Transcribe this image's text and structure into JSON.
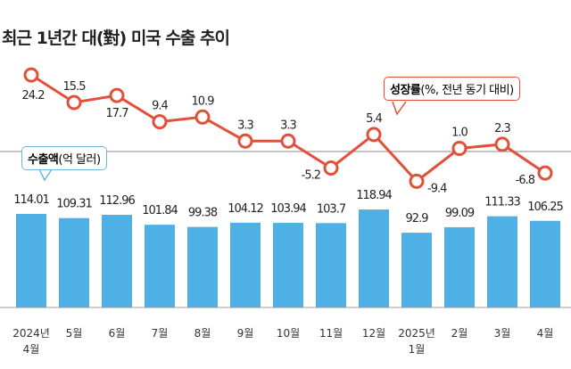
{
  "title": "최근 1년간 대(對) 미국 수출 추이",
  "chart_data": {
    "type": "bar+line",
    "categories": [
      "2024년 4월",
      "5월",
      "6월",
      "7월",
      "8월",
      "9월",
      "10월",
      "11월",
      "12월",
      "2025년 1월",
      "2월",
      "3월",
      "4월"
    ],
    "category_lines": [
      [
        "2024년",
        "4월"
      ],
      [
        "5월"
      ],
      [
        "6월"
      ],
      [
        "7월"
      ],
      [
        "8월"
      ],
      [
        "9월"
      ],
      [
        "10월"
      ],
      [
        "11월"
      ],
      [
        "12월"
      ],
      [
        "2025년",
        "1월"
      ],
      [
        "2월"
      ],
      [
        "3월"
      ],
      [
        "4월"
      ]
    ],
    "series": [
      {
        "name": "수출액(억 달러)",
        "type": "bar",
        "color": "#4fb0e6",
        "values": [
          114.01,
          109.31,
          112.96,
          101.84,
          99.38,
          104.12,
          103.94,
          103.7,
          118.94,
          92.9,
          99.09,
          111.33,
          106.25
        ],
        "labels": [
          "114.01",
          "109.31",
          "112.96",
          "101.84",
          "99.38",
          "104.12",
          "103.94",
          "103.7",
          "118.94",
          "92.9",
          "99.09",
          "111.33",
          "106.25"
        ]
      },
      {
        "name": "성장률(%, 전년 동기 대비)",
        "type": "line",
        "color": "#e2503a",
        "values": [
          24.2,
          15.5,
          17.7,
          9.4,
          10.9,
          3.3,
          3.3,
          -5.2,
          5.4,
          -9.4,
          1.0,
          2.3,
          -6.8
        ],
        "labels": [
          "24.2",
          "15.5",
          "17.7",
          "9.4",
          "10.9",
          "3.3",
          "3.3",
          "-5.2",
          "5.4",
          "-9.4",
          "1.0",
          "2.3",
          "-6.8"
        ]
      }
    ],
    "legend": {
      "bar_bold": "수출액",
      "bar_rest": "(억 달러)",
      "line_bold": "성장률",
      "line_rest": "(%, 전년 동기 대비)"
    }
  }
}
